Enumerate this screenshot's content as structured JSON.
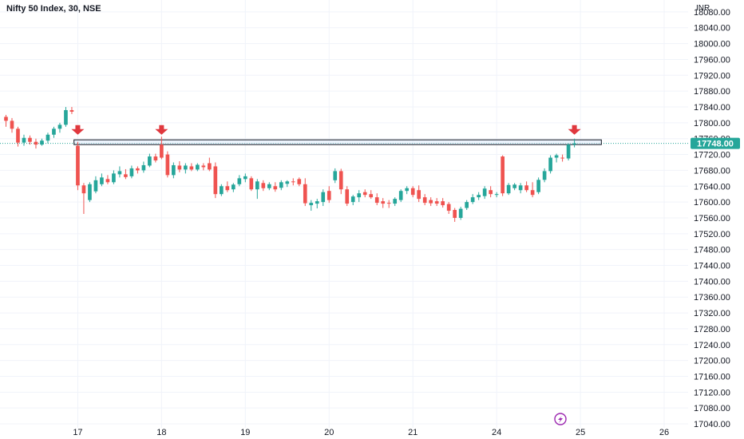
{
  "header": {
    "title": "Nifty 50 Index, 30, NSE"
  },
  "colors": {
    "up": "#26a69a",
    "down": "#ef5350",
    "arrow": "#e0383e",
    "grid": "#f0f3fa",
    "price_line": "#26a69a",
    "zone_stroke": "#131722",
    "zone_fill": "#dbe9f9",
    "watermark": "#9c27b0"
  },
  "chart_data": {
    "type": "candlestick",
    "title": "Nifty 50 Index, 30, NSE",
    "currency": "INR",
    "ylim": [
      17030,
      18110
    ],
    "y_ticks": [
      "18080.00",
      "18040.00",
      "18000.00",
      "17960.00",
      "17920.00",
      "17880.00",
      "17840.00",
      "17800.00",
      "17760.00",
      "17720.00",
      "17680.00",
      "17640.00",
      "17600.00",
      "17560.00",
      "17520.00",
      "17480.00",
      "17440.00",
      "17400.00",
      "17360.00",
      "17320.00",
      "17280.00",
      "17240.00",
      "17200.00",
      "17160.00",
      "17120.00",
      "17080.00",
      "17040.00"
    ],
    "x_labels": [
      {
        "label": "17",
        "bar": 12
      },
      {
        "label": "18",
        "bar": 26
      },
      {
        "label": "19",
        "bar": 40
      },
      {
        "label": "20",
        "bar": 54
      },
      {
        "label": "21",
        "bar": 68
      },
      {
        "label": "24",
        "bar": 82
      },
      {
        "label": "25",
        "bar": 96
      },
      {
        "label": "26",
        "bar": 110
      }
    ],
    "bar_range": [
      -1,
      114
    ],
    "current_price": 17748.0,
    "current_price_label": "17748.00",
    "resistance_zone": {
      "low": 17745,
      "high": 17757,
      "from_bar": 12,
      "to_bar": 99
    },
    "arrows": [
      {
        "bar": 12,
        "price": 17770
      },
      {
        "bar": 26,
        "price": 17770
      },
      {
        "bar": 95,
        "price": 17770
      }
    ],
    "candles": [
      {
        "o": 17815,
        "h": 17820,
        "l": 17790,
        "c": 17805
      },
      {
        "o": 17805,
        "h": 17812,
        "l": 17775,
        "c": 17785
      },
      {
        "o": 17785,
        "h": 17790,
        "l": 17740,
        "c": 17750
      },
      {
        "o": 17750,
        "h": 17770,
        "l": 17742,
        "c": 17762
      },
      {
        "o": 17762,
        "h": 17768,
        "l": 17745,
        "c": 17752
      },
      {
        "o": 17752,
        "h": 17760,
        "l": 17735,
        "c": 17745
      },
      {
        "o": 17745,
        "h": 17760,
        "l": 17742,
        "c": 17755
      },
      {
        "o": 17755,
        "h": 17775,
        "l": 17748,
        "c": 17770
      },
      {
        "o": 17770,
        "h": 17790,
        "l": 17762,
        "c": 17785
      },
      {
        "o": 17785,
        "h": 17800,
        "l": 17775,
        "c": 17795
      },
      {
        "o": 17795,
        "h": 17840,
        "l": 17790,
        "c": 17832
      },
      {
        "o": 17832,
        "h": 17840,
        "l": 17822,
        "c": 17828
      },
      {
        "o": 17742,
        "h": 17752,
        "l": 17630,
        "c": 17642
      },
      {
        "o": 17642,
        "h": 17648,
        "l": 17570,
        "c": 17622
      },
      {
        "o": 17605,
        "h": 17650,
        "l": 17600,
        "c": 17645
      },
      {
        "o": 17627,
        "h": 17665,
        "l": 17622,
        "c": 17655
      },
      {
        "o": 17645,
        "h": 17672,
        "l": 17640,
        "c": 17662
      },
      {
        "o": 17658,
        "h": 17668,
        "l": 17645,
        "c": 17650
      },
      {
        "o": 17650,
        "h": 17680,
        "l": 17645,
        "c": 17672
      },
      {
        "o": 17670,
        "h": 17690,
        "l": 17662,
        "c": 17678
      },
      {
        "o": 17670,
        "h": 17683,
        "l": 17658,
        "c": 17663
      },
      {
        "o": 17665,
        "h": 17692,
        "l": 17660,
        "c": 17685
      },
      {
        "o": 17685,
        "h": 17690,
        "l": 17672,
        "c": 17680
      },
      {
        "o": 17680,
        "h": 17702,
        "l": 17674,
        "c": 17693
      },
      {
        "o": 17692,
        "h": 17722,
        "l": 17688,
        "c": 17715
      },
      {
        "o": 17715,
        "h": 17722,
        "l": 17700,
        "c": 17705
      },
      {
        "o": 17745,
        "h": 17765,
        "l": 17708,
        "c": 17712
      },
      {
        "o": 17720,
        "h": 17728,
        "l": 17662,
        "c": 17668
      },
      {
        "o": 17668,
        "h": 17700,
        "l": 17660,
        "c": 17693
      },
      {
        "o": 17692,
        "h": 17703,
        "l": 17675,
        "c": 17682
      },
      {
        "o": 17682,
        "h": 17698,
        "l": 17672,
        "c": 17692
      },
      {
        "o": 17690,
        "h": 17698,
        "l": 17678,
        "c": 17682
      },
      {
        "o": 17682,
        "h": 17698,
        "l": 17678,
        "c": 17694
      },
      {
        "o": 17692,
        "h": 17698,
        "l": 17680,
        "c": 17688
      },
      {
        "o": 17698,
        "h": 17712,
        "l": 17678,
        "c": 17682
      },
      {
        "o": 17690,
        "h": 17700,
        "l": 17610,
        "c": 17620
      },
      {
        "o": 17620,
        "h": 17645,
        "l": 17615,
        "c": 17640
      },
      {
        "o": 17640,
        "h": 17652,
        "l": 17625,
        "c": 17630
      },
      {
        "o": 17632,
        "h": 17648,
        "l": 17625,
        "c": 17644
      },
      {
        "o": 17645,
        "h": 17668,
        "l": 17640,
        "c": 17660
      },
      {
        "o": 17658,
        "h": 17672,
        "l": 17650,
        "c": 17665
      },
      {
        "o": 17660,
        "h": 17665,
        "l": 17628,
        "c": 17632
      },
      {
        "o": 17632,
        "h": 17658,
        "l": 17608,
        "c": 17652
      },
      {
        "o": 17648,
        "h": 17655,
        "l": 17628,
        "c": 17635
      },
      {
        "o": 17635,
        "h": 17650,
        "l": 17630,
        "c": 17645
      },
      {
        "o": 17640,
        "h": 17650,
        "l": 17626,
        "c": 17632
      },
      {
        "o": 17636,
        "h": 17655,
        "l": 17630,
        "c": 17650
      },
      {
        "o": 17646,
        "h": 17655,
        "l": 17638,
        "c": 17652
      },
      {
        "o": 17652,
        "h": 17660,
        "l": 17642,
        "c": 17650
      },
      {
        "o": 17658,
        "h": 17662,
        "l": 17640,
        "c": 17645
      },
      {
        "o": 17645,
        "h": 17660,
        "l": 17590,
        "c": 17597
      },
      {
        "o": 17592,
        "h": 17605,
        "l": 17578,
        "c": 17598
      },
      {
        "o": 17596,
        "h": 17608,
        "l": 17584,
        "c": 17602
      },
      {
        "o": 17600,
        "h": 17632,
        "l": 17590,
        "c": 17625
      },
      {
        "o": 17628,
        "h": 17640,
        "l": 17598,
        "c": 17605
      },
      {
        "o": 17655,
        "h": 17685,
        "l": 17648,
        "c": 17678
      },
      {
        "o": 17678,
        "h": 17684,
        "l": 17620,
        "c": 17632
      },
      {
        "o": 17632,
        "h": 17640,
        "l": 17590,
        "c": 17596
      },
      {
        "o": 17600,
        "h": 17618,
        "l": 17592,
        "c": 17614
      },
      {
        "o": 17612,
        "h": 17630,
        "l": 17600,
        "c": 17622
      },
      {
        "o": 17625,
        "h": 17632,
        "l": 17612,
        "c": 17618
      },
      {
        "o": 17620,
        "h": 17630,
        "l": 17608,
        "c": 17612
      },
      {
        "o": 17612,
        "h": 17622,
        "l": 17592,
        "c": 17598
      },
      {
        "o": 17602,
        "h": 17610,
        "l": 17585,
        "c": 17596
      },
      {
        "o": 17598,
        "h": 17605,
        "l": 17585,
        "c": 17596
      },
      {
        "o": 17596,
        "h": 17612,
        "l": 17590,
        "c": 17608
      },
      {
        "o": 17605,
        "h": 17632,
        "l": 17600,
        "c": 17628
      },
      {
        "o": 17628,
        "h": 17640,
        "l": 17620,
        "c": 17635
      },
      {
        "o": 17635,
        "h": 17640,
        "l": 17612,
        "c": 17618
      },
      {
        "o": 17630,
        "h": 17642,
        "l": 17600,
        "c": 17608
      },
      {
        "o": 17612,
        "h": 17620,
        "l": 17592,
        "c": 17598
      },
      {
        "o": 17605,
        "h": 17612,
        "l": 17590,
        "c": 17597
      },
      {
        "o": 17602,
        "h": 17610,
        "l": 17590,
        "c": 17596
      },
      {
        "o": 17602,
        "h": 17610,
        "l": 17586,
        "c": 17592
      },
      {
        "o": 17595,
        "h": 17600,
        "l": 17570,
        "c": 17578
      },
      {
        "o": 17580,
        "h": 17585,
        "l": 17550,
        "c": 17560
      },
      {
        "o": 17560,
        "h": 17588,
        "l": 17555,
        "c": 17583
      },
      {
        "o": 17585,
        "h": 17605,
        "l": 17580,
        "c": 17600
      },
      {
        "o": 17600,
        "h": 17620,
        "l": 17595,
        "c": 17612
      },
      {
        "o": 17612,
        "h": 17625,
        "l": 17605,
        "c": 17618
      },
      {
        "o": 17615,
        "h": 17640,
        "l": 17608,
        "c": 17634
      },
      {
        "o": 17630,
        "h": 17640,
        "l": 17612,
        "c": 17620
      },
      {
        "o": 17620,
        "h": 17625,
        "l": 17612,
        "c": 17620
      },
      {
        "o": 17715,
        "h": 17718,
        "l": 17615,
        "c": 17622
      },
      {
        "o": 17622,
        "h": 17648,
        "l": 17618,
        "c": 17643
      },
      {
        "o": 17635,
        "h": 17648,
        "l": 17630,
        "c": 17644
      },
      {
        "o": 17630,
        "h": 17648,
        "l": 17622,
        "c": 17642
      },
      {
        "o": 17642,
        "h": 17652,
        "l": 17625,
        "c": 17630
      },
      {
        "o": 17630,
        "h": 17650,
        "l": 17612,
        "c": 17618
      },
      {
        "o": 17625,
        "h": 17662,
        "l": 17620,
        "c": 17656
      },
      {
        "o": 17656,
        "h": 17685,
        "l": 17650,
        "c": 17678
      },
      {
        "o": 17678,
        "h": 17718,
        "l": 17672,
        "c": 17712
      },
      {
        "o": 17712,
        "h": 17722,
        "l": 17700,
        "c": 17718
      },
      {
        "o": 17712,
        "h": 17720,
        "l": 17702,
        "c": 17710
      },
      {
        "o": 17710,
        "h": 17748,
        "l": 17705,
        "c": 17745
      },
      {
        "o": 17745,
        "h": 17760,
        "l": 17738,
        "c": 17748
      }
    ]
  }
}
